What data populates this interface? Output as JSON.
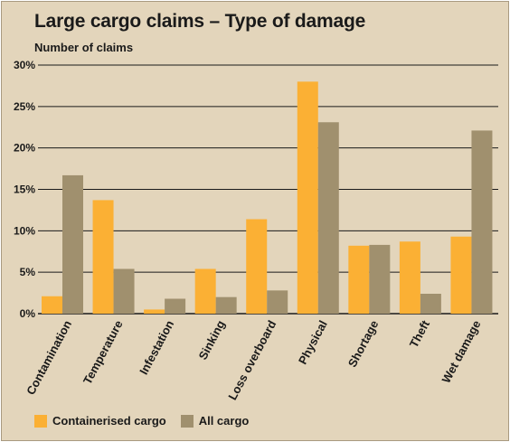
{
  "chart_data": {
    "type": "bar",
    "title": "Large cargo claims – Type of damage",
    "ylabel": "Number of claims",
    "xlabel": "",
    "ylim": [
      0,
      30
    ],
    "yticks": [
      "0%",
      "5%",
      "10%",
      "15%",
      "20%",
      "25%",
      "30%"
    ],
    "grid": true,
    "legend_position": "bottom-left",
    "categories": [
      "Contamination",
      "Temperature",
      "Infestation",
      "Sinking",
      "Loss overboard",
      "Physical",
      "Shortage",
      "Theft",
      "Wet damage"
    ],
    "series": [
      {
        "name": "Containerised cargo",
        "color": "#fbb034",
        "values": [
          2.1,
          13.7,
          0.5,
          5.4,
          11.4,
          28.0,
          8.2,
          8.7,
          9.3
        ]
      },
      {
        "name": "All cargo",
        "color": "#a0906e",
        "values": [
          16.7,
          5.4,
          1.8,
          2.0,
          2.8,
          23.1,
          8.3,
          2.4,
          22.1
        ]
      }
    ]
  }
}
